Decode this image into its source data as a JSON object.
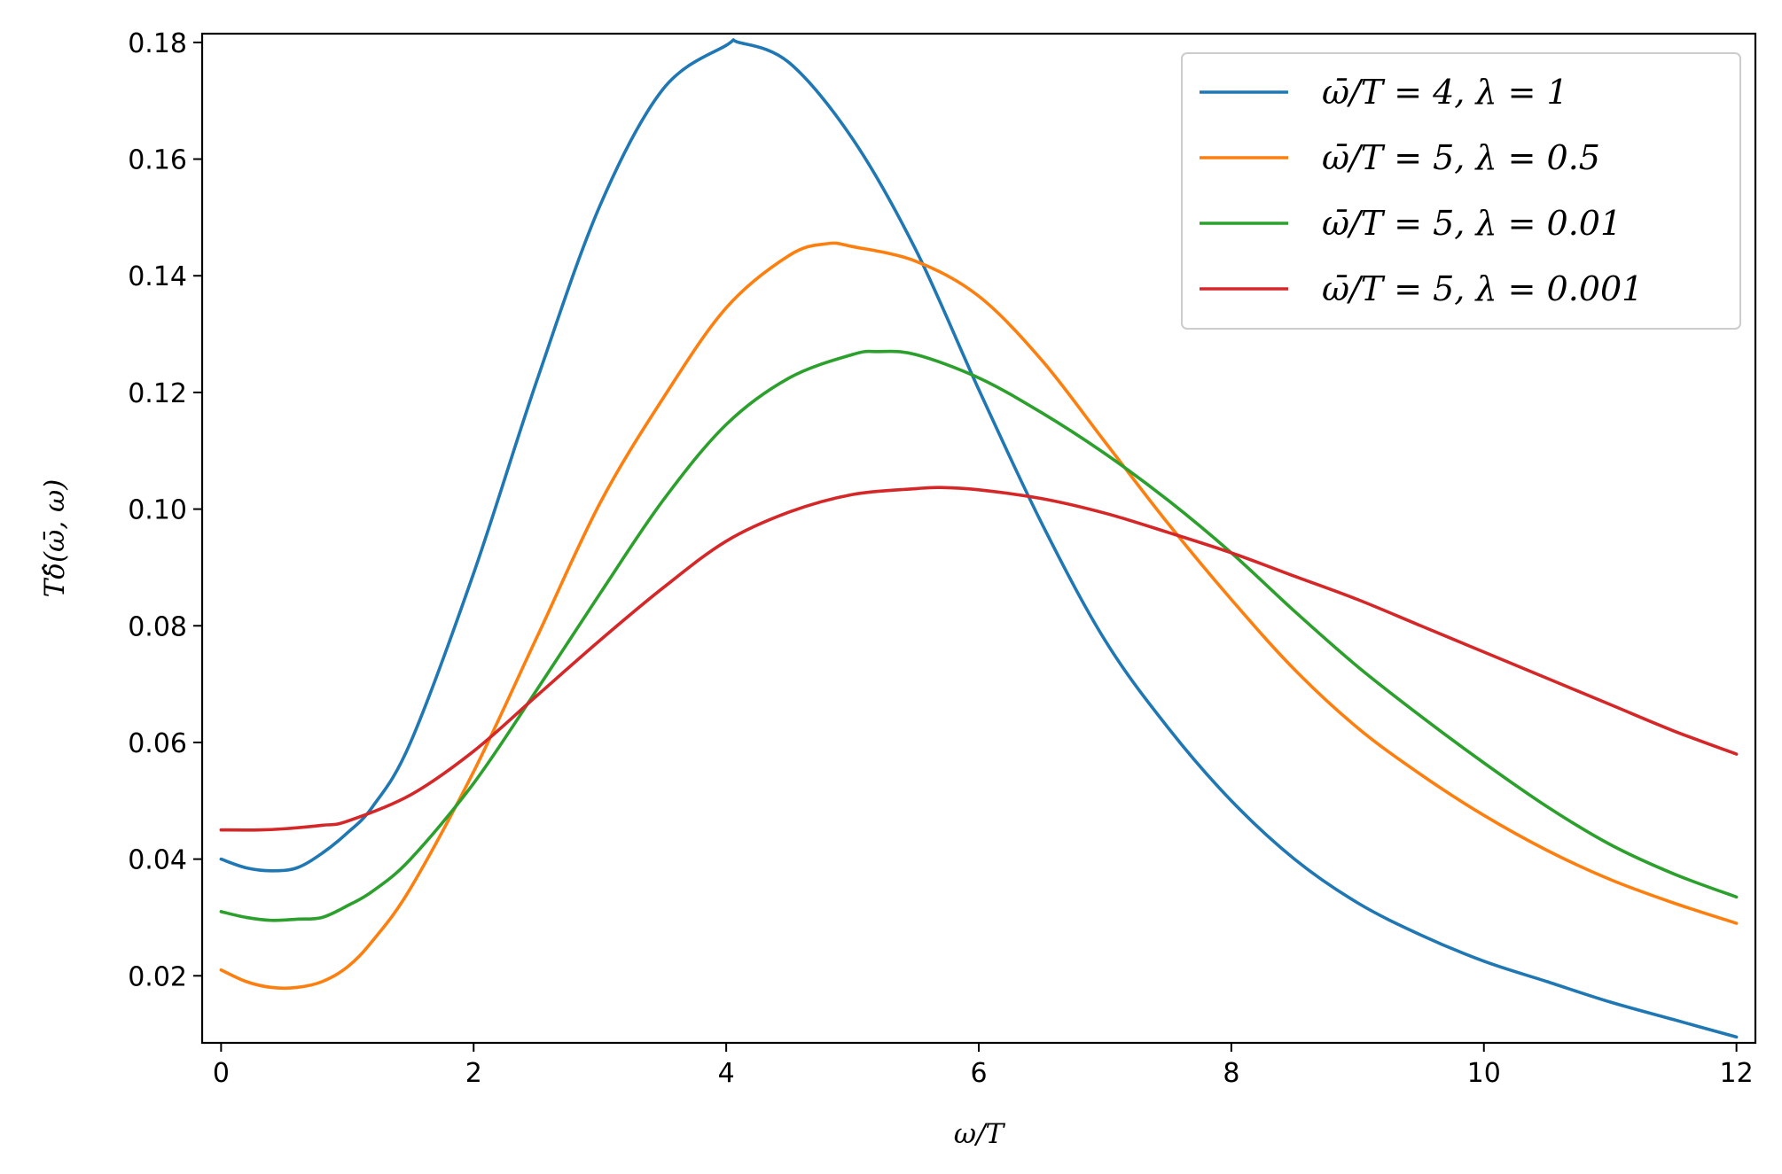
{
  "chart_data": {
    "type": "line",
    "title": "",
    "xlabel": "ω/T",
    "ylabel": "Tδ̂(ω̄, ω)",
    "xlim": [
      -0.15,
      12.15
    ],
    "ylim": [
      0.0085,
      0.1815
    ],
    "xticks": [
      0,
      2,
      4,
      6,
      8,
      10,
      12
    ],
    "xtick_labels": [
      "0",
      "2",
      "4",
      "6",
      "8",
      "10",
      "12"
    ],
    "yticks": [
      0.02,
      0.04,
      0.06,
      0.08,
      0.1,
      0.12,
      0.14,
      0.16,
      0.18
    ],
    "ytick_labels": [
      "0.02",
      "0.04",
      "0.06",
      "0.08",
      "0.10",
      "0.12",
      "0.14",
      "0.16",
      "0.18"
    ],
    "grid": false,
    "legend_position": "top-right",
    "series": [
      {
        "name": "ω̄/T = 4, λ = 1",
        "color": "#1f77b4",
        "x": [
          0,
          0.2,
          0.4,
          0.6,
          0.8,
          1.0,
          1.2,
          1.5,
          2.0,
          2.5,
          3.0,
          3.5,
          4.0,
          4.1,
          4.5,
          5.0,
          5.5,
          6.0,
          6.5,
          7.0,
          7.5,
          8.0,
          8.5,
          9.0,
          9.5,
          10.0,
          10.5,
          11.0,
          11.5,
          12.0
        ],
        "y": [
          0.04,
          0.0385,
          0.038,
          0.0385,
          0.041,
          0.0445,
          0.049,
          0.06,
          0.089,
          0.122,
          0.152,
          0.172,
          0.1795,
          0.18,
          0.1765,
          0.1635,
          0.1445,
          0.1205,
          0.0975,
          0.0775,
          0.0625,
          0.05,
          0.04,
          0.0325,
          0.027,
          0.0225,
          0.019,
          0.0155,
          0.0125,
          0.0095
        ]
      },
      {
        "name": "ω̄/T = 5, λ = 0.5",
        "color": "#ff7f0e",
        "x": [
          0,
          0.2,
          0.4,
          0.6,
          0.8,
          1.0,
          1.2,
          1.5,
          2.0,
          2.5,
          3.0,
          3.5,
          4.0,
          4.5,
          4.8,
          5.0,
          5.5,
          6.0,
          6.5,
          7.0,
          7.5,
          8.0,
          8.5,
          9.0,
          9.5,
          10.0,
          10.5,
          11.0,
          11.5,
          12.0
        ],
        "y": [
          0.021,
          0.019,
          0.018,
          0.018,
          0.019,
          0.0215,
          0.026,
          0.035,
          0.055,
          0.078,
          0.101,
          0.119,
          0.1345,
          0.1435,
          0.1455,
          0.145,
          0.1425,
          0.1365,
          0.1255,
          0.1115,
          0.0975,
          0.0845,
          0.0725,
          0.0625,
          0.0545,
          0.0475,
          0.0415,
          0.0365,
          0.0325,
          0.029
        ]
      },
      {
        "name": "ω̄/T = 5, λ = 0.01",
        "color": "#2ca02c",
        "x": [
          0,
          0.2,
          0.4,
          0.6,
          0.8,
          1.0,
          1.2,
          1.5,
          2.0,
          2.5,
          3.0,
          3.5,
          4.0,
          4.5,
          5.0,
          5.2,
          5.5,
          6.0,
          6.5,
          7.0,
          7.5,
          8.0,
          8.5,
          9.0,
          9.5,
          10.0,
          10.5,
          11.0,
          11.5,
          12.0
        ],
        "y": [
          0.031,
          0.03,
          0.0295,
          0.0297,
          0.03,
          0.032,
          0.0345,
          0.04,
          0.053,
          0.069,
          0.0855,
          0.1015,
          0.1145,
          0.1225,
          0.1265,
          0.127,
          0.1265,
          0.1225,
          0.1165,
          0.1095,
          0.1015,
          0.0925,
          0.0825,
          0.073,
          0.0645,
          0.0565,
          0.049,
          0.0425,
          0.0375,
          0.0335
        ]
      },
      {
        "name": "ω̄/T = 5, λ = 0.001",
        "color": "#d62728",
        "x": [
          0,
          0.3,
          0.5,
          0.8,
          1.0,
          1.5,
          2.0,
          2.5,
          3.0,
          3.5,
          4.0,
          4.5,
          5.0,
          5.5,
          5.7,
          6.0,
          6.5,
          7.0,
          7.5,
          8.0,
          8.5,
          9.0,
          9.5,
          10.0,
          10.5,
          11.0,
          11.5,
          12.0
        ],
        "y": [
          0.045,
          0.045,
          0.0452,
          0.0458,
          0.0465,
          0.051,
          0.0585,
          0.068,
          0.0775,
          0.0865,
          0.0945,
          0.0995,
          0.1025,
          0.1035,
          0.1037,
          0.1033,
          0.1018,
          0.0993,
          0.096,
          0.0925,
          0.0885,
          0.0845,
          0.08,
          0.0755,
          0.071,
          0.0665,
          0.062,
          0.058
        ]
      }
    ]
  }
}
